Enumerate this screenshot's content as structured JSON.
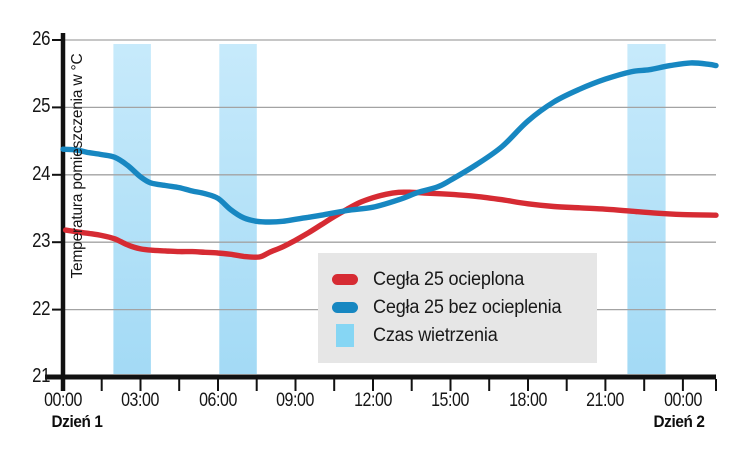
{
  "chart_data": {
    "type": "line",
    "title": "",
    "ylabel": "Temperatura pomieszczenia w °C",
    "xlabel": "",
    "ylim": [
      21,
      26
    ],
    "yticks": [
      {
        "label": "26",
        "value": 26
      },
      {
        "label": "25",
        "value": 25
      },
      {
        "label": "24",
        "value": 24
      },
      {
        "label": "23",
        "value": 23
      },
      {
        "label": "22",
        "value": 22
      },
      {
        "label": "21",
        "value": 21
      }
    ],
    "xlim_hours": [
      0,
      25.28
    ],
    "minor_tick_interval_hours": 1.5,
    "grid": "horizontal-only",
    "legend_position": "inside-bottom-center",
    "xticks": [
      {
        "label": "00:00",
        "hour": 0
      },
      {
        "label": "03:00",
        "hour": 3
      },
      {
        "label": "06:00",
        "hour": 6
      },
      {
        "label": "09:00",
        "hour": 9
      },
      {
        "label": "12:00",
        "hour": 12
      },
      {
        "label": "15:00",
        "hour": 15
      },
      {
        "label": "18:00",
        "hour": 18
      },
      {
        "label": "21:00",
        "hour": 21
      },
      {
        "label": "00:00",
        "hour": 24
      }
    ],
    "day_labels": [
      {
        "label": "Dzień 1",
        "hour": 0,
        "dx": 14
      },
      {
        "label": "Dzień 2",
        "hour": 24,
        "dx": -4
      }
    ],
    "bands": {
      "label": "Czas wietrzenia",
      "intervals_hours": [
        [
          1.95,
          3.4
        ],
        [
          6.05,
          7.5
        ],
        [
          21.85,
          23.33
        ]
      ]
    },
    "series": [
      {
        "name": "Cegła 25 ocieplona",
        "color": "#d62b33",
        "x": [
          0.1,
          0.6,
          1,
          1.5,
          2,
          2.5,
          3,
          3.5,
          4,
          4.5,
          5,
          5.5,
          6,
          6.5,
          7,
          7.6,
          8,
          8.5,
          9,
          9.5,
          10,
          10.5,
          11,
          11.5,
          12,
          12.5,
          13,
          13.5,
          14,
          15,
          16,
          17,
          18,
          19,
          20,
          21,
          22,
          23,
          24,
          25.28
        ],
        "y": [
          23.18,
          23.15,
          23.13,
          23.1,
          23.05,
          22.96,
          22.9,
          22.88,
          22.87,
          22.86,
          22.86,
          22.85,
          22.84,
          22.82,
          22.79,
          22.78,
          22.85,
          22.93,
          23.03,
          23.14,
          23.26,
          23.38,
          23.49,
          23.59,
          23.66,
          23.71,
          23.74,
          23.74,
          23.73,
          23.71,
          23.68,
          23.63,
          23.57,
          23.53,
          23.51,
          23.49,
          23.46,
          23.43,
          23.41,
          23.4
        ]
      },
      {
        "name": "Cegła 25 bez ocieplenia",
        "color": "#1787c1",
        "x": [
          0,
          0.5,
          1,
          1.5,
          2,
          2.5,
          3,
          3.4,
          4,
          4.5,
          5,
          5.5,
          6,
          6.5,
          7,
          7.5,
          8,
          8.5,
          9,
          9.5,
          10,
          11,
          12,
          13,
          13.75,
          14.5,
          15,
          16,
          17,
          18,
          19,
          20,
          21,
          22,
          22.7,
          23.5,
          24.3,
          25,
          25.28
        ],
        "y": [
          24.38,
          24.37,
          24.33,
          24.3,
          24.26,
          24.14,
          23.97,
          23.88,
          23.84,
          23.81,
          23.76,
          23.72,
          23.65,
          23.48,
          23.36,
          23.31,
          23.3,
          23.31,
          23.34,
          23.37,
          23.4,
          23.47,
          23.52,
          23.63,
          23.74,
          23.82,
          23.92,
          24.15,
          24.42,
          24.8,
          25.08,
          25.27,
          25.42,
          25.53,
          25.56,
          25.62,
          25.66,
          25.64,
          25.62
        ]
      }
    ]
  },
  "legend": {
    "items": [
      {
        "label": "Cegła 25 ocieplona",
        "swatch": "line-red"
      },
      {
        "label": "Cegła 25 bez ocieplenia",
        "swatch": "line-blue"
      },
      {
        "label": "Czas wietrzenia",
        "swatch": "band-lightblue"
      }
    ]
  },
  "colors": {
    "series_red": "#d62b33",
    "series_blue": "#1787c1",
    "band_top": "#c7eafb",
    "band_bottom": "#a3daf5",
    "legend_band_swatch": "#86d6f4",
    "legend_background": "#e6e6e6",
    "grid": "#a3a3a3",
    "axis": "#111111",
    "text": "#1a1a1a",
    "background": "#ffffff"
  }
}
